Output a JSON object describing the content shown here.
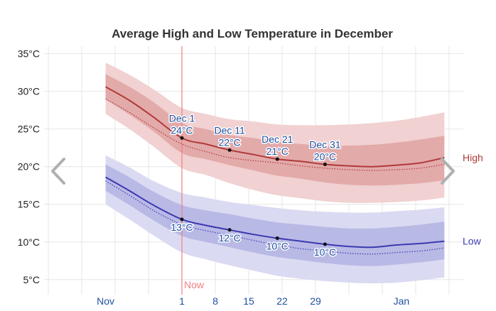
{
  "chart_data": {
    "type": "area",
    "title": "Average High and Low Temperature in December",
    "y_unit": "°C",
    "ylim": [
      3,
      36
    ],
    "y_ticks": [
      5,
      10,
      15,
      20,
      25,
      30,
      35
    ],
    "y_tick_labels": [
      "5°C",
      "10°C",
      "15°C",
      "20°C",
      "25°C",
      "30°C",
      "35°C"
    ],
    "x_labels": [
      "Nov",
      "1",
      "8",
      "15",
      "22",
      "29",
      "Jan"
    ],
    "grid": true,
    "series": [
      {
        "name": "High",
        "color": "#b03a3a",
        "points": [
          [
            "Nov 15",
            30.6
          ],
          [
            "Nov 20",
            28.8
          ],
          [
            "Nov 25",
            26.6
          ],
          [
            "Dec 1",
            23.8
          ],
          [
            "Dec 6",
            23.0
          ],
          [
            "Dec 11",
            22.2
          ],
          [
            "Dec 16",
            21.6
          ],
          [
            "Dec 21",
            21.0
          ],
          [
            "Dec 26",
            20.7
          ],
          [
            "Dec 31",
            20.3
          ],
          [
            "Jan 5",
            20.1
          ],
          [
            "Jan 10",
            20.0
          ],
          [
            "Jan 15",
            20.2
          ],
          [
            "Jan 20",
            20.5
          ],
          [
            "Jan 25",
            21.2
          ]
        ],
        "dotted": [
          [
            "Nov 15",
            29.0
          ],
          [
            "Nov 20",
            27.2
          ],
          [
            "Nov 25",
            25.2
          ],
          [
            "Dec 1",
            23.0
          ],
          [
            "Dec 6",
            22.0
          ],
          [
            "Dec 11",
            21.2
          ],
          [
            "Dec 16",
            20.8
          ],
          [
            "Dec 21",
            20.5
          ],
          [
            "Dec 26",
            20.1
          ],
          [
            "Dec 31",
            19.8
          ],
          [
            "Jan 5",
            19.6
          ],
          [
            "Jan 10",
            19.5
          ],
          [
            "Jan 15",
            19.6
          ],
          [
            "Jan 20",
            19.8
          ],
          [
            "Jan 25",
            20.3
          ]
        ],
        "band_inner": [
          [
            "Nov 15",
            32.3,
            28.9
          ],
          [
            "Nov 20",
            30.6,
            26.9
          ],
          [
            "Nov 25",
            28.6,
            24.7
          ],
          [
            "Dec 1",
            25.8,
            21.8
          ],
          [
            "Dec 6",
            25.0,
            21.0
          ],
          [
            "Dec 11",
            24.2,
            20.2
          ],
          [
            "Dec 16",
            23.8,
            19.5
          ],
          [
            "Dec 21",
            23.3,
            18.8
          ],
          [
            "Dec 26",
            23.0,
            18.4
          ],
          [
            "Dec 31",
            22.8,
            17.9
          ],
          [
            "Jan 5",
            22.8,
            17.6
          ],
          [
            "Jan 10",
            22.9,
            17.5
          ],
          [
            "Jan 15",
            23.2,
            17.6
          ],
          [
            "Jan 20",
            23.6,
            17.8
          ],
          [
            "Jan 25",
            24.1,
            18.2
          ]
        ],
        "band_outer": [
          [
            "Nov 15",
            33.8,
            27.0
          ],
          [
            "Nov 20",
            32.2,
            25.0
          ],
          [
            "Nov 25",
            30.3,
            22.7
          ],
          [
            "Dec 1",
            27.8,
            19.8
          ],
          [
            "Dec 6",
            27.0,
            18.9
          ],
          [
            "Dec 11",
            26.3,
            17.8
          ],
          [
            "Dec 16",
            26.0,
            16.9
          ],
          [
            "Dec 21",
            25.6,
            16.2
          ],
          [
            "Dec 26",
            25.5,
            15.8
          ],
          [
            "Dec 31",
            25.5,
            15.4
          ],
          [
            "Jan 5",
            25.6,
            15.2
          ],
          [
            "Jan 10",
            25.8,
            15.2
          ],
          [
            "Jan 15",
            26.1,
            15.3
          ],
          [
            "Jan 20",
            26.6,
            15.5
          ],
          [
            "Jan 25",
            27.2,
            15.9
          ]
        ]
      },
      {
        "name": "Low",
        "color": "#3a3ab0",
        "points": [
          [
            "Nov 15",
            18.6
          ],
          [
            "Nov 20",
            16.8
          ],
          [
            "Nov 25",
            14.9
          ],
          [
            "Dec 1",
            13.0
          ],
          [
            "Dec 6",
            12.2
          ],
          [
            "Dec 11",
            11.6
          ],
          [
            "Dec 16",
            11.0
          ],
          [
            "Dec 21",
            10.5
          ],
          [
            "Dec 26",
            10.1
          ],
          [
            "Dec 31",
            9.7
          ],
          [
            "Jan 5",
            9.4
          ],
          [
            "Jan 10",
            9.3
          ],
          [
            "Jan 15",
            9.6
          ],
          [
            "Jan 20",
            9.8
          ],
          [
            "Jan 25",
            10.1
          ]
        ],
        "dotted": [
          [
            "Nov 15",
            18.1
          ],
          [
            "Nov 20",
            16.2
          ],
          [
            "Nov 25",
            14.2
          ],
          [
            "Dec 1",
            12.3
          ],
          [
            "Dec 6",
            11.5
          ],
          [
            "Dec 11",
            10.9
          ],
          [
            "Dec 16",
            10.2
          ],
          [
            "Dec 21",
            9.6
          ],
          [
            "Dec 26",
            9.1
          ],
          [
            "Dec 31",
            8.8
          ],
          [
            "Jan 5",
            8.5
          ],
          [
            "Jan 10",
            8.4
          ],
          [
            "Jan 15",
            8.6
          ],
          [
            "Jan 20",
            8.8
          ],
          [
            "Jan 25",
            9.2
          ]
        ],
        "band_inner": [
          [
            "Nov 15",
            20.3,
            16.8
          ],
          [
            "Nov 20",
            18.6,
            14.9
          ],
          [
            "Nov 25",
            16.7,
            12.9
          ],
          [
            "Dec 1",
            14.9,
            10.8
          ],
          [
            "Dec 6",
            14.2,
            10.0
          ],
          [
            "Dec 11",
            13.7,
            9.3
          ],
          [
            "Dec 16",
            13.1,
            8.6
          ],
          [
            "Dec 21",
            12.6,
            8.0
          ],
          [
            "Dec 26",
            12.3,
            7.6
          ],
          [
            "Dec 31",
            12.0,
            7.2
          ],
          [
            "Jan 5",
            11.8,
            6.9
          ],
          [
            "Jan 10",
            11.8,
            6.8
          ],
          [
            "Jan 15",
            12.0,
            7.0
          ],
          [
            "Jan 20",
            12.3,
            7.3
          ],
          [
            "Jan 25",
            12.7,
            7.7
          ]
        ],
        "band_outer": [
          [
            "Nov 15",
            21.5,
            15.0
          ],
          [
            "Nov 20",
            19.9,
            13.0
          ],
          [
            "Nov 25",
            18.1,
            10.9
          ],
          [
            "Dec 1",
            16.5,
            8.6
          ],
          [
            "Dec 6",
            15.9,
            7.7
          ],
          [
            "Dec 11",
            15.3,
            6.9
          ],
          [
            "Dec 16",
            14.9,
            6.2
          ],
          [
            "Dec 21",
            14.5,
            5.5
          ],
          [
            "Dec 26",
            14.2,
            5.1
          ],
          [
            "Dec 31",
            14.0,
            4.8
          ],
          [
            "Jan 5",
            13.9,
            4.6
          ],
          [
            "Jan 10",
            13.9,
            4.5
          ],
          [
            "Jan 15",
            14.1,
            4.6
          ],
          [
            "Jan 20",
            14.3,
            4.9
          ],
          [
            "Jan 25",
            14.6,
            5.3
          ]
        ]
      }
    ],
    "annotations": [
      {
        "date": "Dec 1",
        "series": "High",
        "value": 23.8,
        "label_date": "Dec 1",
        "label_value": "24°C"
      },
      {
        "date": "Dec 11",
        "series": "High",
        "value": 22.2,
        "label_date": "Dec 11",
        "label_value": "22°C"
      },
      {
        "date": "Dec 21",
        "series": "High",
        "value": 21.0,
        "label_date": "Dec 21",
        "label_value": "21°C"
      },
      {
        "date": "Dec 31",
        "series": "High",
        "value": 20.3,
        "label_date": "Dec 31",
        "label_value": "20°C"
      },
      {
        "date": "Dec 1",
        "series": "Low",
        "value": 13.0,
        "label_value": "13°C"
      },
      {
        "date": "Dec 11",
        "series": "Low",
        "value": 11.6,
        "label_value": "12°C"
      },
      {
        "date": "Dec 21",
        "series": "Low",
        "value": 10.5,
        "label_value": "10°C"
      },
      {
        "date": "Dec 31",
        "series": "Low",
        "value": 9.7,
        "label_value": "10°C"
      }
    ],
    "now_marker": {
      "date": "Dec 1",
      "label": "Now",
      "color": "#f08080"
    },
    "colors": {
      "high_line": "#b03a3a",
      "high_inner": "#e3aaaa",
      "high_outer": "#f1d1d1",
      "low_line": "#3a3ab0",
      "low_inner": "#b9b9e6",
      "low_outer": "#dadaf2",
      "grid": "#e6e6e6",
      "x_ticks": "#1f4fa0"
    }
  },
  "nav": {
    "prev_icon": "chevron-left-icon",
    "next_icon": "chevron-right-icon"
  }
}
